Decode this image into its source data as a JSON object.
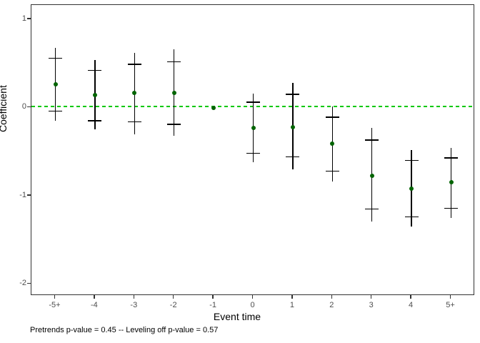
{
  "chart_data": {
    "type": "scatter",
    "subtype": "event-study-coefficient-plot",
    "title": "",
    "xlabel": "Event time",
    "ylabel": "Coefficient",
    "caption": "Pretrends p-value = 0.45 -- Leveling off p-value = 0.57",
    "categories": [
      "-5+",
      "-4",
      "-3",
      "-2",
      "-1",
      "0",
      "1",
      "2",
      "3",
      "4",
      "5+"
    ],
    "points": [
      {
        "event": "-5+",
        "estimate": 0.26,
        "inner_ci": [
          -0.04,
          0.56
        ],
        "outer_ci": [
          -0.15,
          0.68
        ]
      },
      {
        "event": "-4",
        "estimate": 0.14,
        "inner_ci": [
          -0.15,
          0.42
        ],
        "outer_ci": [
          -0.25,
          0.54
        ]
      },
      {
        "event": "-3",
        "estimate": 0.17,
        "inner_ci": [
          -0.16,
          0.49
        ],
        "outer_ci": [
          -0.3,
          0.62
        ]
      },
      {
        "event": "-2",
        "estimate": 0.17,
        "inner_ci": [
          -0.19,
          0.52
        ],
        "outer_ci": [
          -0.32,
          0.66
        ]
      },
      {
        "event": "-1",
        "estimate": 0.0,
        "inner_ci": null,
        "outer_ci": null,
        "reference": true
      },
      {
        "event": "0",
        "estimate": -0.23,
        "inner_ci": [
          -0.52,
          0.06
        ],
        "outer_ci": [
          -0.62,
          0.16
        ]
      },
      {
        "event": "1",
        "estimate": -0.22,
        "inner_ci": [
          -0.56,
          0.15
        ],
        "outer_ci": [
          -0.7,
          0.28
        ]
      },
      {
        "event": "2",
        "estimate": -0.41,
        "inner_ci": [
          -0.72,
          -0.11
        ],
        "outer_ci": [
          -0.84,
          0.01
        ]
      },
      {
        "event": "3",
        "estimate": -0.77,
        "inner_ci": [
          -1.15,
          -0.37
        ],
        "outer_ci": [
          -1.29,
          -0.23
        ]
      },
      {
        "event": "4",
        "estimate": -0.92,
        "inner_ci": [
          -1.24,
          -0.6
        ],
        "outer_ci": [
          -1.35,
          -0.48
        ]
      },
      {
        "event": "5+",
        "estimate": -0.85,
        "inner_ci": [
          -1.14,
          -0.57
        ],
        "outer_ci": [
          -1.25,
          -0.46
        ]
      }
    ],
    "y_ticks": [
      1,
      0,
      -1,
      -2
    ],
    "ylim": [
      -2.13,
      1.16
    ],
    "reference_line": {
      "y": 0,
      "style": "dashed"
    },
    "grid": false,
    "legend": null,
    "colors": {
      "point": "#006400",
      "error_bar": "#000000",
      "reference_line": "#00C800",
      "panel_border": "#333333",
      "tick_label": "#4d4d4d",
      "axis_title": "#000000"
    }
  }
}
